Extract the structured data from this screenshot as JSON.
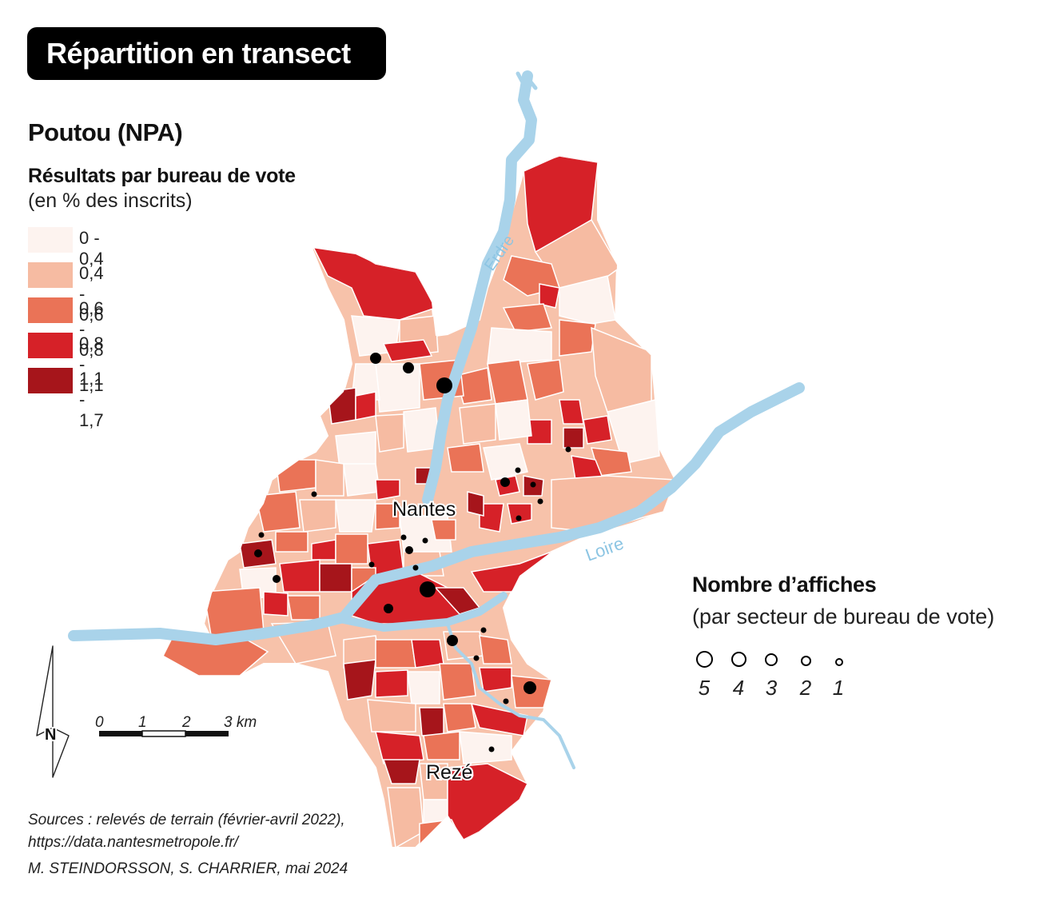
{
  "header": {
    "title": "Répartition en transect"
  },
  "map": {
    "subject": "Poutou (NPA)",
    "legend": {
      "heading": "Résultats par bureau de vote",
      "subheading": "(en % des inscrits)",
      "classes": [
        {
          "label": "0 - 0,4",
          "color": "#fdf3ef"
        },
        {
          "label": "0,4 - 0,6",
          "color": "#f6bba2"
        },
        {
          "label": "0,6 - 0,8",
          "color": "#ea7357"
        },
        {
          "label": "0,8 - 1,1",
          "color": "#d62128"
        },
        {
          "label": "1,1 - 1,7",
          "color": "#a6151b"
        }
      ]
    },
    "symbols": {
      "heading": "Nombre d’affiches",
      "subheading": "(par secteur de bureau de vote)",
      "values": [
        "5",
        "4",
        "3",
        "2",
        "1"
      ]
    },
    "places": {
      "city_main": "Nantes",
      "city_south": "Rezé"
    },
    "rivers": {
      "erdre": "Erdre",
      "loire": "Loire"
    },
    "river_color": "#a9d3ea",
    "scale": {
      "ticks": [
        "0",
        "1",
        "2"
      ],
      "last": "3 km"
    },
    "north": "N"
  },
  "footer": {
    "sources_line1": "Sources : relevés de terrain (février-avril 2022),",
    "sources_line2": "https://data.nantesmetropole.fr/",
    "credit": "M. STEINDORSSON, S. CHARRIER, mai 2024"
  }
}
